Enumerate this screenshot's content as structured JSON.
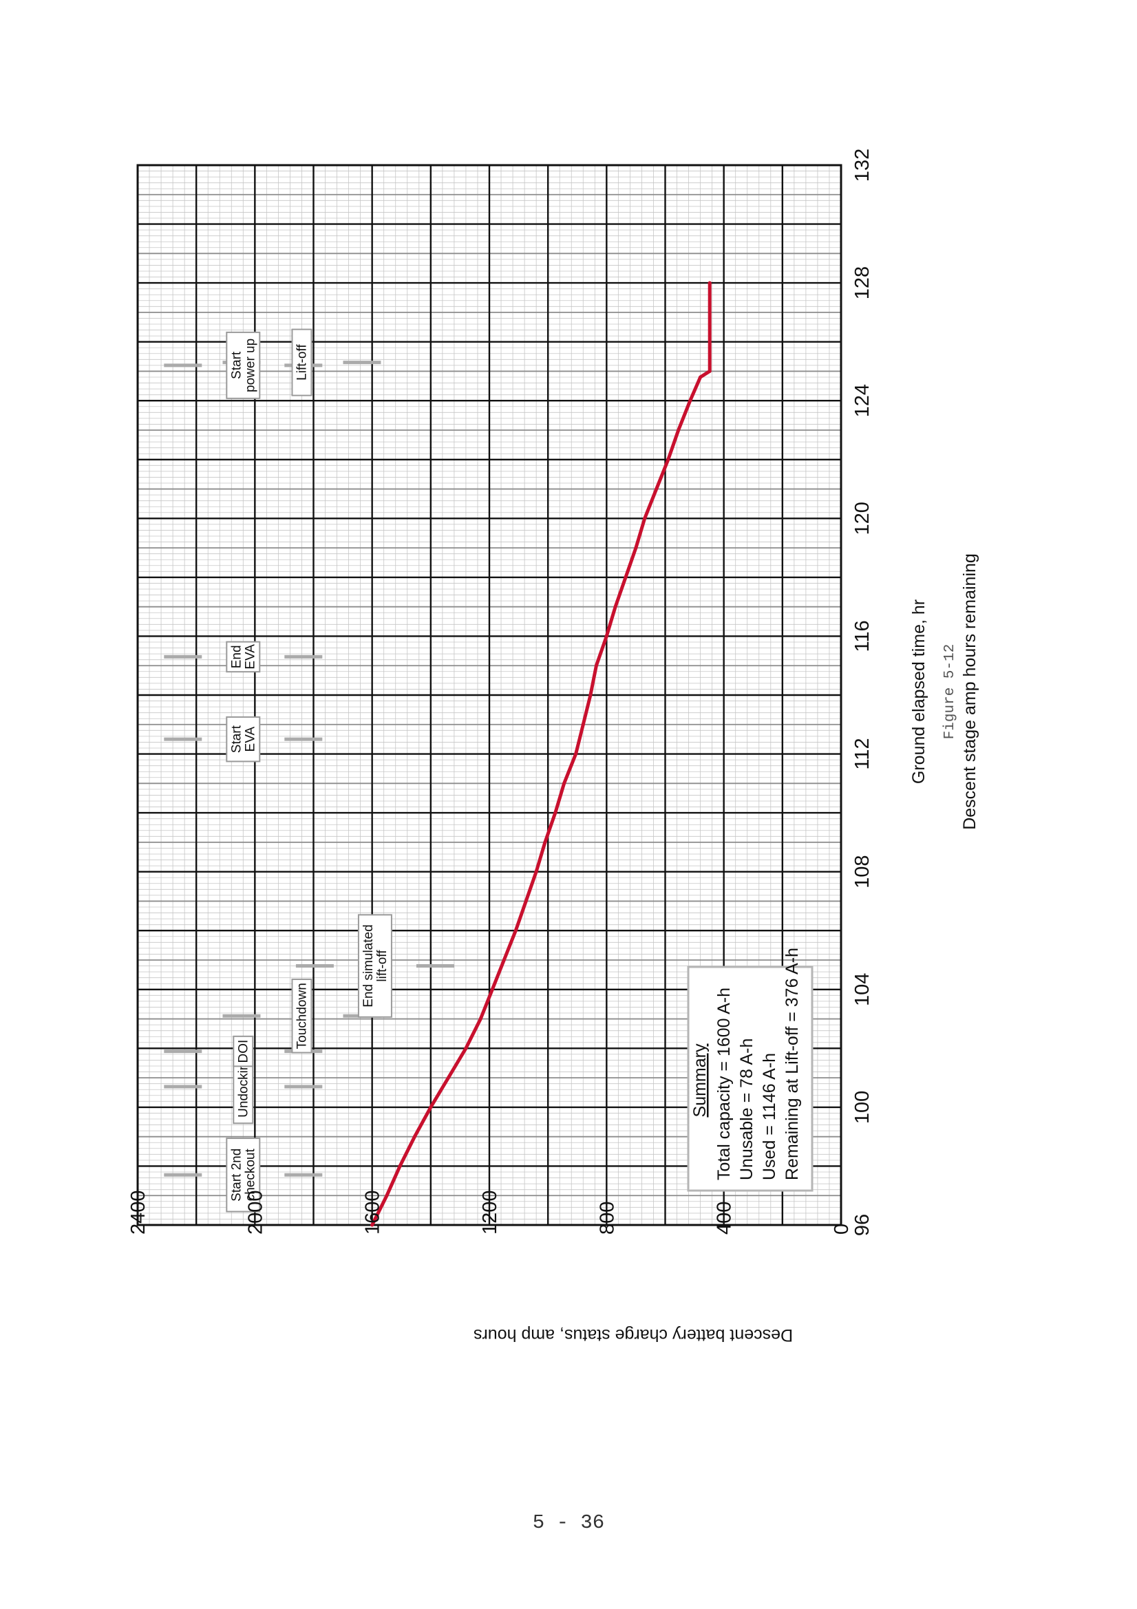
{
  "page": {
    "number": "5 - 36"
  },
  "chart_data": {
    "type": "line",
    "orientation": "page rotated 90 degrees counter-clockwise",
    "title": "Descent stage amp hours remaining",
    "figure_number": "Figure 5-12",
    "xlabel": "Ground elapsed time, hr",
    "ylabel": "Descent battery charge status, amp hours",
    "xlim": [
      96,
      132
    ],
    "ylim": [
      0,
      2400
    ],
    "x_ticks": [
      "96",
      "100",
      "104",
      "108",
      "112",
      "116",
      "120",
      "124",
      "128",
      "132"
    ],
    "y_ticks": [
      "0",
      "400",
      "800",
      "1200",
      "1600",
      "2000",
      "2400"
    ],
    "grid": true,
    "line_color": "#c8102e",
    "series": [
      {
        "x": [
          96,
          97,
          98,
          99,
          100,
          101,
          102,
          103,
          104,
          105,
          106,
          107,
          108,
          109,
          110,
          111,
          112,
          113,
          114,
          115,
          116,
          117,
          118,
          119,
          120,
          121,
          122,
          123,
          124,
          124.8,
          125,
          128
        ],
        "y": [
          1600,
          1550,
          1505,
          1455,
          1400,
          1340,
          1280,
          1230,
          1190,
          1150,
          1110,
          1075,
          1040,
          1010,
          975,
          945,
          905,
          880,
          855,
          835,
          800,
          770,
          735,
          700,
          670,
          630,
          590,
          555,
          515,
          480,
          448,
          448
        ]
      }
    ],
    "events": [
      {
        "lines": [
          "Start 2nd",
          "checkout"
        ],
        "x": 97.7,
        "y": 2040
      },
      {
        "lines": [
          "Undocking"
        ],
        "x": 100.7,
        "y": 2040
      },
      {
        "lines": [
          "DOI"
        ],
        "x": 101.9,
        "y": 2040
      },
      {
        "lines": [
          "Touchdown"
        ],
        "x": 103.1,
        "y": 1840
      },
      {
        "lines": [
          "End simulated",
          "lift-off"
        ],
        "x": 104.8,
        "y": 1590
      },
      {
        "lines": [
          "Start",
          "EVA"
        ],
        "x": 112.5,
        "y": 2040
      },
      {
        "lines": [
          "End",
          "EVA"
        ],
        "x": 115.3,
        "y": 2040
      },
      {
        "lines": [
          "Start",
          "power up"
        ],
        "x": 125.2,
        "y": 2040
      },
      {
        "lines": [
          "Lift-off"
        ],
        "x": 125.3,
        "y": 1840
      }
    ],
    "summary": {
      "heading": "Summary",
      "lines": [
        "Total capacity = 1600 A-h",
        "Unusable = 78 A-h",
        "Used = 1146 A-h",
        "Remaining at Lift-off = 376 A-h"
      ]
    }
  }
}
